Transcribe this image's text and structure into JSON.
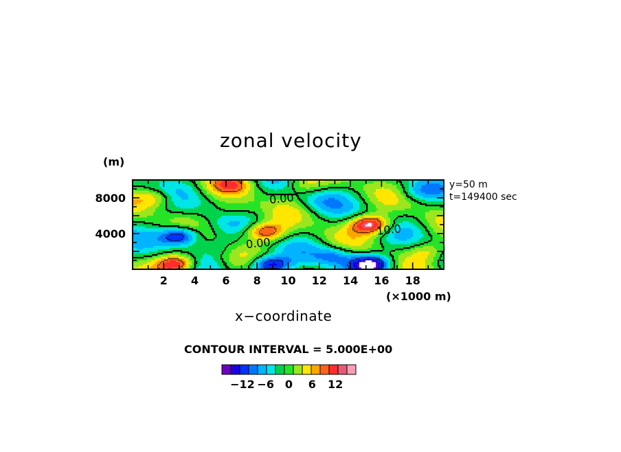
{
  "chart_data": {
    "type": "heatmap",
    "title": "zonal velocity",
    "xlabel": "x−coordinate",
    "x_unit": "(×1000 m)",
    "y_unit": "(m)",
    "xlim": [
      0,
      20
    ],
    "ylim": [
      0,
      10000
    ],
    "x_ticks": [
      "2",
      "4",
      "6",
      "8",
      "10",
      "12",
      "14",
      "16",
      "18"
    ],
    "y_ticks": [
      "4000",
      "8000"
    ],
    "annotations": [
      "y=50 m",
      "t=149400 sec"
    ],
    "contour_labels": [
      "0.00",
      "0.00",
      "10.0"
    ],
    "contour_interval_text": "CONTOUR INTERVAL = 5.000E+00",
    "colorbar": {
      "levels": [
        -15,
        -12.5,
        -10,
        -7.5,
        -5,
        -2.5,
        0,
        2.5,
        5,
        7.5,
        10,
        12.5,
        15
      ],
      "tick_labels": [
        "−12",
        "−6",
        "0",
        "6",
        "12"
      ],
      "colors": [
        "#6b00c4",
        "#1a00e0",
        "#0033ff",
        "#0077ff",
        "#00b4ff",
        "#00e6e6",
        "#00d24b",
        "#27e327",
        "#9be61e",
        "#ffe600",
        "#ffa500",
        "#ff6419",
        "#ff2d2d",
        "#e65a78",
        "#f5a0b4"
      ]
    },
    "features": [
      {
        "x": 3.0,
        "y": 3700,
        "u": -17
      },
      {
        "x": 2.8,
        "y": 600,
        "u": 17
      },
      {
        "x": 8.5,
        "y": 4200,
        "u": 14
      },
      {
        "x": 8.8,
        "y": 500,
        "u": -16
      },
      {
        "x": 15.3,
        "y": 5000,
        "u": 18
      },
      {
        "x": 15.3,
        "y": 600,
        "u": -17
      },
      {
        "x": 13.0,
        "y": 1500,
        "u": -8
      },
      {
        "x": 6.5,
        "y": 6500,
        "u": 4
      },
      {
        "x": 6.3,
        "y": 9500,
        "u": 8
      },
      {
        "x": 11.0,
        "y": 9600,
        "u": 6
      },
      {
        "x": 18.3,
        "y": 8700,
        "u": -5
      },
      {
        "x": 12.0,
        "y": 7500,
        "u": -3
      },
      {
        "x": 1.5,
        "y": 8000,
        "u": 7
      },
      {
        "x": 19.0,
        "y": 2000,
        "u": 6
      },
      {
        "x": 5.5,
        "y": 2500,
        "u": -3
      }
    ]
  }
}
